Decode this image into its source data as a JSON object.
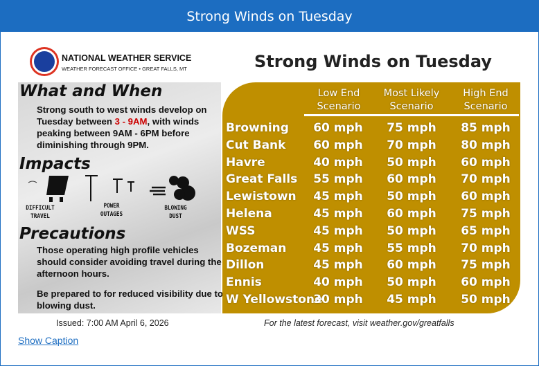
{
  "window": {
    "title": "Strong Winds on Tuesday"
  },
  "graphic": {
    "agency": "NATIONAL WEATHER SERVICE",
    "office": "WEATHER FORECAST OFFICE • GREAT FALLS, MT",
    "title": "Strong Winds on Tuesday",
    "what_heading": "What and When",
    "what_text_1": "Strong south to west winds develop on Tuesday between ",
    "what_time": "3 - 9AM",
    "what_text_2": ", with winds peaking between 9AM - 6PM before diminishing through 9PM.",
    "impacts_heading": "Impacts",
    "impacts": [
      {
        "label": "DIFFICULT TRAVEL",
        "icon": "truck-wind-icon"
      },
      {
        "label": "POWER OUTAGES",
        "icon": "power-lines-icon"
      },
      {
        "label": "BLOWING DUST",
        "icon": "dust-cloud-icon"
      }
    ],
    "precautions_heading": "Precautions",
    "precaution_1": "Those operating high profile vehicles should consider avoiding travel during the afternoon hours.",
    "precaution_2": "Be prepared to for reduced visibility due to blowing dust.",
    "table": {
      "headers": [
        "Low End Scenario",
        "Most Likely Scenario",
        "High End Scenario"
      ],
      "rows": [
        [
          "Browning",
          "60 mph",
          "75 mph",
          "85 mph"
        ],
        [
          "Cut Bank",
          "60 mph",
          "70 mph",
          "80 mph"
        ],
        [
          "Havre",
          "40 mph",
          "50 mph",
          "60 mph"
        ],
        [
          "Great Falls",
          "55 mph",
          "60 mph",
          "70 mph"
        ],
        [
          "Lewistown",
          "45 mph",
          "50 mph",
          "60 mph"
        ],
        [
          "Helena",
          "45 mph",
          "60 mph",
          "75 mph"
        ],
        [
          "WSS",
          "45 mph",
          "50 mph",
          "65 mph"
        ],
        [
          "Bozeman",
          "45 mph",
          "55 mph",
          "70 mph"
        ],
        [
          "Dillon",
          "45 mph",
          "60 mph",
          "75 mph"
        ],
        [
          "Ennis",
          "40 mph",
          "50 mph",
          "60 mph"
        ],
        [
          "W Yellowstone",
          "30 mph",
          "45 mph",
          "50 mph"
        ]
      ]
    },
    "issued": "Issued: 7:00 AM April 6, 2026",
    "footer": "For the latest forecast, visit weather.gov/greatfalls"
  },
  "caption_link": "Show Caption",
  "colors": {
    "accent": "#1c6dc1",
    "table_bg": "#bf8f00",
    "highlight": "#cc0000"
  }
}
